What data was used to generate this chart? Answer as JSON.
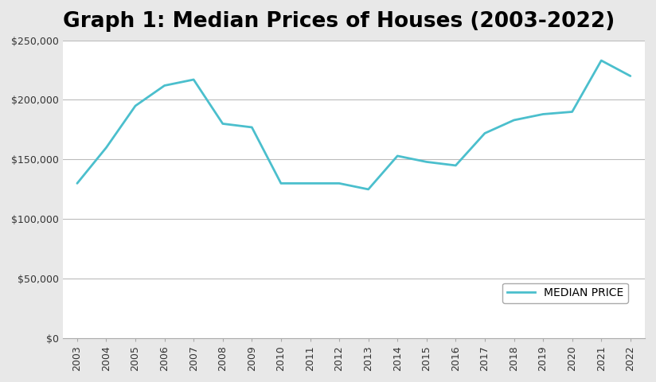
{
  "title": "Graph 1: Median Prices of Houses (2003-2022)",
  "years": [
    2003,
    2004,
    2005,
    2006,
    2007,
    2008,
    2009,
    2010,
    2011,
    2012,
    2013,
    2014,
    2015,
    2016,
    2017,
    2018,
    2019,
    2020,
    2021,
    2022
  ],
  "median_prices": [
    130000,
    160000,
    195000,
    212000,
    217000,
    180000,
    177000,
    130000,
    130000,
    130000,
    125000,
    153000,
    148000,
    145000,
    172000,
    183000,
    188000,
    190000,
    233000,
    220000
  ],
  "line_color": "#4bbfcd",
  "fig_background_color": "#e8e8e8",
  "plot_background_color": "#ffffff",
  "grid_color": "#bbbbbb",
  "ylim": [
    0,
    250000
  ],
  "yticks": [
    0,
    50000,
    100000,
    150000,
    200000,
    250000
  ],
  "legend_label": "MEDIAN PRICE",
  "title_fontsize": 19,
  "tick_fontsize": 9,
  "legend_fontsize": 10
}
